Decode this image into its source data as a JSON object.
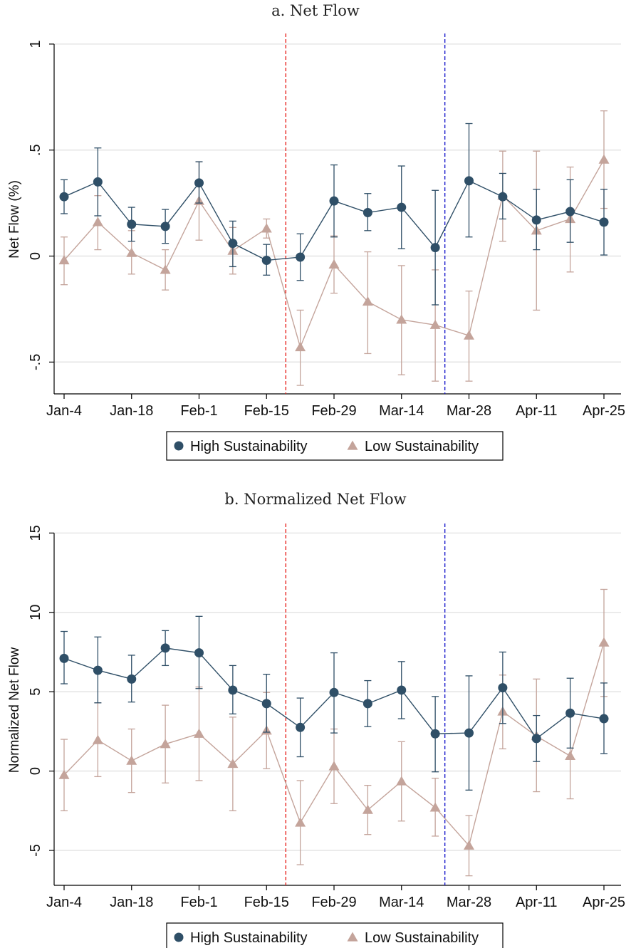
{
  "chart_data": [
    {
      "type": "line",
      "title": "a. Net Flow",
      "xlabel": "",
      "ylabel": "Net Flow (%)",
      "x_tick_labels": [
        "Jan-4",
        "Jan-18",
        "Feb-1",
        "Feb-15",
        "Feb-29",
        "Mar-14",
        "Mar-28",
        "Apr-11",
        "Apr-25"
      ],
      "y_ticks": [
        "1",
        ".5",
        "0",
        "-.5"
      ],
      "y_tick_values": [
        1,
        0.5,
        0,
        -0.5
      ],
      "ylim": [
        -0.65,
        1.05
      ],
      "grid": "horizontal",
      "legend_position": "bottom",
      "vertical_lines": [
        {
          "x": "Feb-19",
          "color": "#e8251f",
          "style": "dashed"
        },
        {
          "x": "Mar-23",
          "color": "#1a1acc",
          "style": "dashed"
        }
      ],
      "series": [
        {
          "name": "High Sustainability",
          "marker": "circle",
          "color": "#2f4f67",
          "points": [
            {
              "x": "Jan-4",
              "y": 0.28,
              "lo": 0.2,
              "hi": 0.36
            },
            {
              "x": "Jan-11",
              "y": 0.35,
              "lo": 0.19,
              "hi": 0.51
            },
            {
              "x": "Jan-18",
              "y": 0.15,
              "lo": 0.07,
              "hi": 0.23
            },
            {
              "x": "Jan-25",
              "y": 0.14,
              "lo": 0.06,
              "hi": 0.22
            },
            {
              "x": "Feb-1",
              "y": 0.345,
              "lo": 0.25,
              "hi": 0.445
            },
            {
              "x": "Feb-8",
              "y": 0.06,
              "lo": -0.05,
              "hi": 0.165
            },
            {
              "x": "Feb-15",
              "y": -0.02,
              "lo": -0.09,
              "hi": 0.055
            },
            {
              "x": "Feb-22",
              "y": -0.005,
              "lo": -0.115,
              "hi": 0.105
            },
            {
              "x": "Feb-29",
              "y": 0.26,
              "lo": 0.09,
              "hi": 0.43
            },
            {
              "x": "Mar-7",
              "y": 0.205,
              "lo": 0.12,
              "hi": 0.295
            },
            {
              "x": "Mar-14",
              "y": 0.23,
              "lo": 0.035,
              "hi": 0.425
            },
            {
              "x": "Mar-21",
              "y": 0.04,
              "lo": -0.23,
              "hi": 0.31
            },
            {
              "x": "Mar-28",
              "y": 0.355,
              "lo": 0.09,
              "hi": 0.625
            },
            {
              "x": "Apr-4",
              "y": 0.28,
              "lo": 0.175,
              "hi": 0.39
            },
            {
              "x": "Apr-11",
              "y": 0.17,
              "lo": 0.03,
              "hi": 0.315
            },
            {
              "x": "Apr-18",
              "y": 0.21,
              "lo": 0.065,
              "hi": 0.36
            },
            {
              "x": "Apr-25",
              "y": 0.16,
              "lo": 0.005,
              "hi": 0.315
            }
          ]
        },
        {
          "name": "Low Sustainability",
          "marker": "triangle",
          "color": "#c4a49b",
          "points": [
            {
              "x": "Jan-4",
              "y": -0.02,
              "lo": -0.135,
              "hi": 0.09
            },
            {
              "x": "Jan-11",
              "y": 0.16,
              "lo": 0.03,
              "hi": 0.285
            },
            {
              "x": "Jan-18",
              "y": 0.015,
              "lo": -0.085,
              "hi": 0.12
            },
            {
              "x": "Jan-25",
              "y": -0.065,
              "lo": -0.16,
              "hi": 0.03
            },
            {
              "x": "Feb-1",
              "y": 0.26,
              "lo": 0.075,
              "hi": 0.445
            },
            {
              "x": "Feb-8",
              "y": 0.025,
              "lo": -0.085,
              "hi": 0.135
            },
            {
              "x": "Feb-15",
              "y": 0.13,
              "lo": 0.085,
              "hi": 0.175
            },
            {
              "x": "Feb-22",
              "y": -0.43,
              "lo": -0.61,
              "hi": -0.255
            },
            {
              "x": "Feb-29",
              "y": -0.04,
              "lo": -0.175,
              "hi": 0.095
            },
            {
              "x": "Mar-7",
              "y": -0.215,
              "lo": -0.46,
              "hi": 0.02
            },
            {
              "x": "Mar-14",
              "y": -0.3,
              "lo": -0.56,
              "hi": -0.045
            },
            {
              "x": "Mar-21",
              "y": -0.325,
              "lo": -0.59,
              "hi": -0.065
            },
            {
              "x": "Mar-28",
              "y": -0.375,
              "lo": -0.59,
              "hi": -0.165
            },
            {
              "x": "Apr-4",
              "y": 0.285,
              "lo": 0.07,
              "hi": 0.495
            },
            {
              "x": "Apr-11",
              "y": 0.12,
              "lo": -0.255,
              "hi": 0.495
            },
            {
              "x": "Apr-18",
              "y": 0.175,
              "lo": -0.075,
              "hi": 0.42
            },
            {
              "x": "Apr-25",
              "y": 0.455,
              "lo": 0.225,
              "hi": 0.685
            }
          ]
        }
      ]
    },
    {
      "type": "line",
      "title": "b. Normalized Net Flow",
      "xlabel": "",
      "ylabel": "Normalized Net Flow",
      "x_tick_labels": [
        "Jan-4",
        "Jan-18",
        "Feb-1",
        "Feb-15",
        "Feb-29",
        "Mar-14",
        "Mar-28",
        "Apr-11",
        "Apr-25"
      ],
      "y_ticks": [
        "15",
        "10",
        "5",
        "0",
        "-5"
      ],
      "y_tick_values": [
        15,
        10,
        5,
        0,
        -5
      ],
      "ylim": [
        -7.2,
        15.6
      ],
      "grid": "horizontal",
      "legend_position": "bottom",
      "vertical_lines": [
        {
          "x": "Feb-19",
          "color": "#e8251f",
          "style": "dashed"
        },
        {
          "x": "Mar-23",
          "color": "#1a1acc",
          "style": "dashed"
        }
      ],
      "series": [
        {
          "name": "High Sustainability",
          "marker": "circle",
          "color": "#2f4f67",
          "points": [
            {
              "x": "Jan-4",
              "y": 7.1,
              "lo": 5.5,
              "hi": 8.8
            },
            {
              "x": "Jan-11",
              "y": 6.35,
              "lo": 4.3,
              "hi": 8.45
            },
            {
              "x": "Jan-18",
              "y": 5.8,
              "lo": 4.35,
              "hi": 7.3
            },
            {
              "x": "Jan-25",
              "y": 7.75,
              "lo": 6.65,
              "hi": 8.85
            },
            {
              "x": "Feb-1",
              "y": 7.45,
              "lo": 5.2,
              "hi": 9.75
            },
            {
              "x": "Feb-8",
              "y": 5.1,
              "lo": 3.6,
              "hi": 6.65
            },
            {
              "x": "Feb-15",
              "y": 4.25,
              "lo": 2.45,
              "hi": 6.1
            },
            {
              "x": "Feb-22",
              "y": 2.75,
              "lo": 0.9,
              "hi": 4.6
            },
            {
              "x": "Feb-29",
              "y": 4.95,
              "lo": 2.4,
              "hi": 7.45
            },
            {
              "x": "Mar-7",
              "y": 4.25,
              "lo": 2.8,
              "hi": 5.7
            },
            {
              "x": "Mar-14",
              "y": 5.1,
              "lo": 3.3,
              "hi": 6.9
            },
            {
              "x": "Mar-21",
              "y": 2.35,
              "lo": -0.05,
              "hi": 4.7
            },
            {
              "x": "Mar-28",
              "y": 2.4,
              "lo": -1.2,
              "hi": 6.0
            },
            {
              "x": "Apr-4",
              "y": 5.25,
              "lo": 3.0,
              "hi": 7.5
            },
            {
              "x": "Apr-11",
              "y": 2.05,
              "lo": 0.6,
              "hi": 3.5
            },
            {
              "x": "Apr-18",
              "y": 3.65,
              "lo": 1.45,
              "hi": 5.85
            },
            {
              "x": "Apr-25",
              "y": 3.3,
              "lo": 1.1,
              "hi": 5.55
            }
          ]
        },
        {
          "name": "Low Sustainability",
          "marker": "triangle",
          "color": "#c4a49b",
          "points": [
            {
              "x": "Jan-4",
              "y": -0.25,
              "lo": -2.5,
              "hi": 2.0
            },
            {
              "x": "Jan-11",
              "y": 1.95,
              "lo": -0.35,
              "hi": 4.3
            },
            {
              "x": "Jan-18",
              "y": 0.65,
              "lo": -1.35,
              "hi": 2.65
            },
            {
              "x": "Jan-25",
              "y": 1.7,
              "lo": -0.75,
              "hi": 4.15
            },
            {
              "x": "Feb-1",
              "y": 2.35,
              "lo": -0.6,
              "hi": 5.3
            },
            {
              "x": "Feb-8",
              "y": 0.45,
              "lo": -2.5,
              "hi": 3.4
            },
            {
              "x": "Feb-15",
              "y": 2.55,
              "lo": 0.15,
              "hi": 4.95
            },
            {
              "x": "Feb-22",
              "y": -3.25,
              "lo": -5.9,
              "hi": -0.6
            },
            {
              "x": "Feb-29",
              "y": 0.3,
              "lo": -2.05,
              "hi": 2.65
            },
            {
              "x": "Mar-7",
              "y": -2.45,
              "lo": -4.0,
              "hi": -0.9
            },
            {
              "x": "Mar-14",
              "y": -0.65,
              "lo": -3.15,
              "hi": 1.85
            },
            {
              "x": "Mar-21",
              "y": -2.3,
              "lo": -4.1,
              "hi": -0.45
            },
            {
              "x": "Mar-28",
              "y": -4.7,
              "lo": -6.6,
              "hi": -2.8
            },
            {
              "x": "Apr-4",
              "y": 3.75,
              "lo": 1.4,
              "hi": 6.05
            },
            {
              "x": "Apr-11",
              "y": 2.2,
              "lo": -1.3,
              "hi": 5.8
            },
            {
              "x": "Apr-18",
              "y": 0.95,
              "lo": -1.75,
              "hi": 3.65
            },
            {
              "x": "Apr-25",
              "y": 8.1,
              "lo": 4.7,
              "hi": 11.45
            }
          ]
        }
      ]
    }
  ]
}
